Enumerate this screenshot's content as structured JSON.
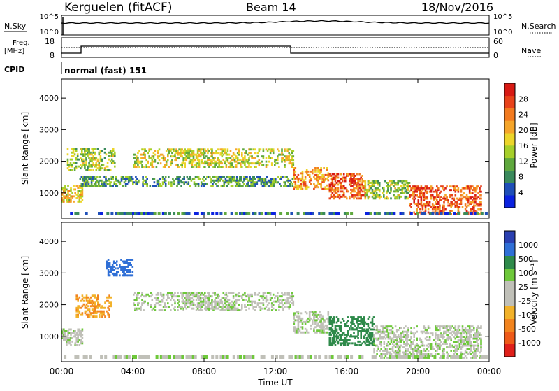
{
  "header": {
    "station": "Kerguelen (fitACF)",
    "beam": "Beam 14",
    "date": "18/Nov/2016"
  },
  "top_panels": {
    "nsky_label": "N.Sky",
    "nsky_ticks": [
      "10^5",
      "10^0"
    ],
    "nsearch_label": "N.Search",
    "nsearch_ticks": [
      "10^5",
      "10^0"
    ],
    "freq_label": "Freq.",
    "freq_unit": "[MHz]",
    "freq_ticks": [
      "18",
      "8"
    ],
    "nave_label": "Nave",
    "nave_ticks": [
      "60",
      "0"
    ],
    "cpid_label": "CPID",
    "cpid_value": "normal (fast) 151"
  },
  "chart_data": [
    {
      "type": "heatmap",
      "panel": "power",
      "ylabel": "Slant Range [km]",
      "yticks": [
        "1000",
        "2000",
        "3000",
        "4000"
      ],
      "ylim": [
        200,
        4600
      ],
      "colorbar": {
        "label": "Power [dB]",
        "ticks": [
          "4",
          "8",
          "12",
          "16",
          "20",
          "24",
          "28"
        ],
        "range": [
          0,
          32
        ],
        "colors": [
          "#0b22e0",
          "#1f4fb8",
          "#3a8a5c",
          "#5fa83e",
          "#a6cf2a",
          "#ecd52a",
          "#f5a52a",
          "#f27a1f",
          "#e8421a",
          "#d81a14"
        ]
      },
      "features": [
        {
          "t": [
            0,
            1.2
          ],
          "range": [
            700,
            1200
          ],
          "level": 18
        },
        {
          "t": [
            0.3,
            3.0
          ],
          "range": [
            1700,
            2400
          ],
          "level": 14
        },
        {
          "t": [
            1.0,
            13.0
          ],
          "range": [
            1200,
            1500
          ],
          "level": 10
        },
        {
          "t": [
            4.0,
            13.0
          ],
          "range": [
            1800,
            2400
          ],
          "level": 16
        },
        {
          "t": [
            13.0,
            15.0
          ],
          "range": [
            1100,
            1800
          ],
          "level": 22
        },
        {
          "t": [
            15.0,
            17.0
          ],
          "range": [
            800,
            1600
          ],
          "level": 26
        },
        {
          "t": [
            17.0,
            19.5
          ],
          "range": [
            800,
            1400
          ],
          "level": 14
        },
        {
          "t": [
            19.5,
            23.5
          ],
          "range": [
            300,
            1200
          ],
          "level": 26
        }
      ]
    },
    {
      "type": "heatmap",
      "panel": "velocity",
      "xlabel": "Time UT",
      "xticks": [
        "00:00",
        "04:00",
        "08:00",
        "12:00",
        "16:00",
        "20:00",
        "00:00"
      ],
      "xlim": [
        0,
        24
      ],
      "ylabel": "Slant Range [km]",
      "yticks": [
        "1000",
        "2000",
        "3000",
        "4000"
      ],
      "ylim": [
        200,
        4600
      ],
      "colorbar": {
        "label": "Velocity [m s⁻¹]",
        "ticks": [
          "1000",
          "500",
          "100",
          "25",
          "-25",
          "-100",
          "-500",
          "-1000"
        ],
        "colors": [
          "#2a3fb0",
          "#2f6fd6",
          "#2e8a4a",
          "#6ec83a",
          "#c0c0b8",
          "#c0c0b8",
          "#f2b22a",
          "#f2841e",
          "#ee5a18",
          "#e0201a"
        ]
      },
      "features": [
        {
          "t": [
            0,
            1.2
          ],
          "range": [
            700,
            1200
          ],
          "velocity": 0
        },
        {
          "t": [
            0.8,
            2.8
          ],
          "range": [
            1600,
            2300
          ],
          "velocity": -300
        },
        {
          "t": [
            2.5,
            4.0
          ],
          "range": [
            2900,
            3400
          ],
          "velocity": 600
        },
        {
          "t": [
            4.0,
            13.0
          ],
          "range": [
            1800,
            2400
          ],
          "velocity": 0
        },
        {
          "t": [
            13.0,
            15.0
          ],
          "range": [
            1100,
            1800
          ],
          "velocity": 0
        },
        {
          "t": [
            15.0,
            17.5
          ],
          "range": [
            700,
            1600
          ],
          "velocity": 200
        },
        {
          "t": [
            17.5,
            23.5
          ],
          "range": [
            300,
            1300
          ],
          "velocity": 0
        }
      ]
    }
  ]
}
